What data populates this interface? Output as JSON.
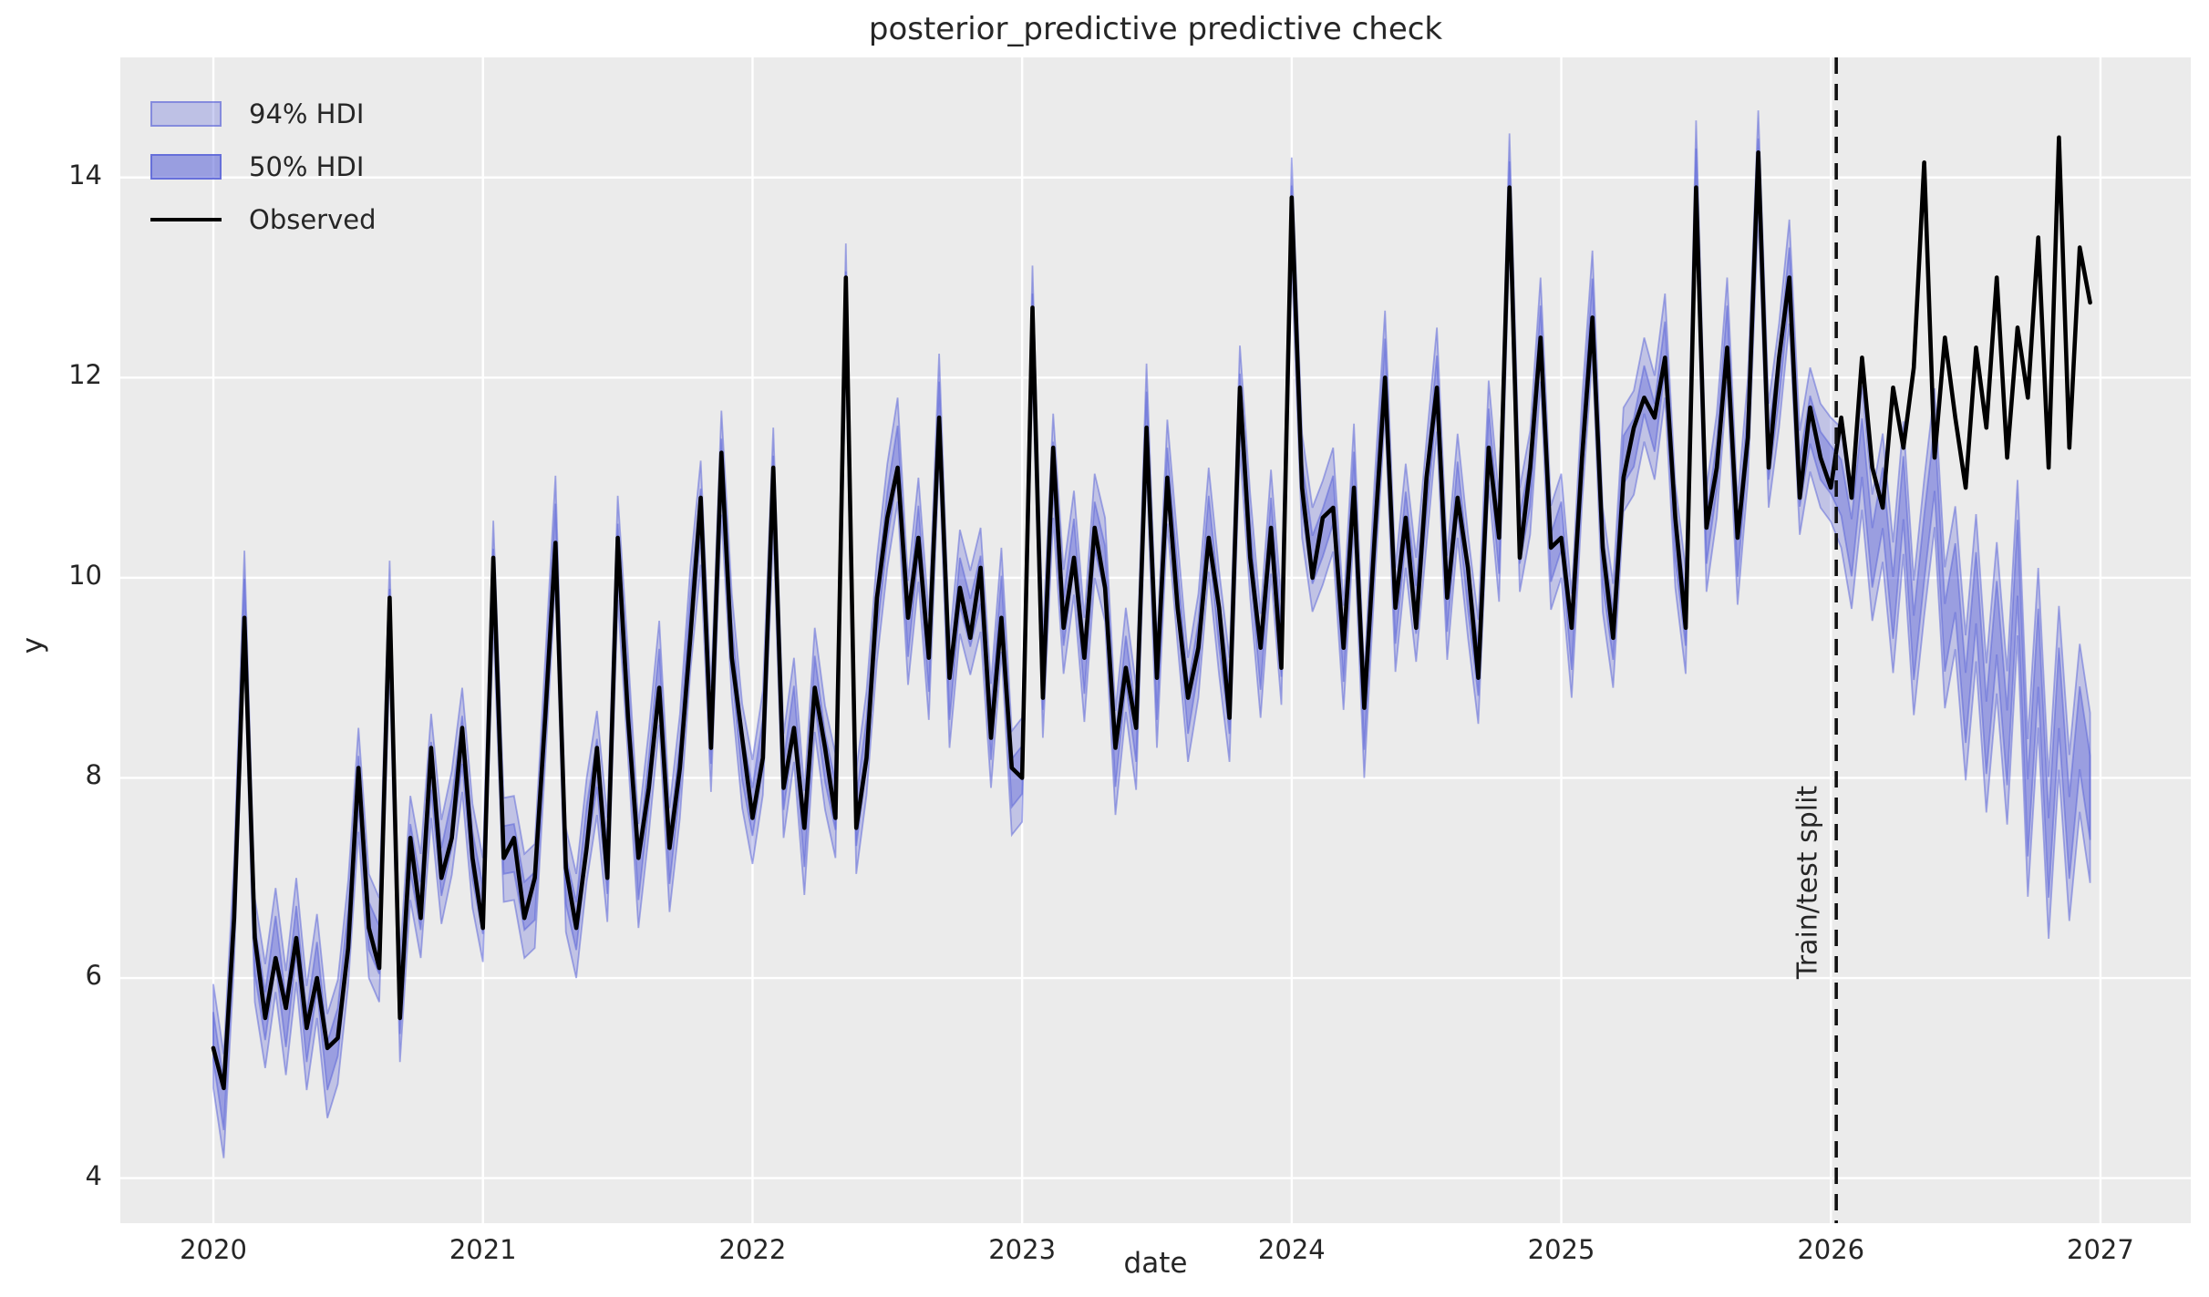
{
  "figure": {
    "title": "posterior_predictive predictive check",
    "xlabel": "date",
    "ylabel": "y",
    "split_annotation": "Train/test split"
  },
  "legend": {
    "items": [
      {
        "label": "94% HDI",
        "swatch": "band-light"
      },
      {
        "label": "50% HDI",
        "swatch": "band-dark"
      },
      {
        "label": "Observed",
        "swatch": "line"
      }
    ]
  },
  "chart_data": {
    "type": "line",
    "title": "posterior_predictive predictive check",
    "xlabel": "date",
    "ylabel": "y",
    "grid": true,
    "legend_position": "upper left",
    "xticks": [
      2020,
      2021,
      2022,
      2023,
      2024,
      2025,
      2026,
      2027
    ],
    "yticks": [
      4,
      6,
      8,
      10,
      12,
      14
    ],
    "xlim": [
      2019.655,
      2027.335
    ],
    "ylim": [
      3.55,
      15.2
    ],
    "x_start": 2020.0,
    "x_step_years": 0.0384615,
    "n_points": 182,
    "split_x": 2026.02,
    "split_index": 157,
    "observed": [
      5.3,
      4.9,
      6.6,
      9.6,
      6.4,
      5.6,
      6.2,
      5.7,
      6.4,
      5.5,
      6.0,
      5.3,
      5.4,
      6.3,
      8.1,
      6.5,
      6.1,
      9.8,
      5.6,
      7.4,
      6.6,
      8.3,
      7.0,
      7.4,
      8.5,
      7.2,
      6.5,
      10.2,
      7.2,
      7.4,
      6.6,
      7.0,
      8.6,
      10.35,
      7.1,
      6.5,
      7.3,
      8.3,
      7.0,
      10.4,
      8.6,
      7.2,
      7.9,
      8.9,
      7.3,
      8.1,
      9.4,
      10.8,
      8.3,
      11.25,
      9.2,
      8.4,
      7.6,
      8.2,
      11.1,
      7.9,
      8.5,
      7.5,
      8.9,
      8.3,
      7.6,
      13.0,
      7.5,
      8.2,
      9.8,
      10.6,
      11.1,
      9.6,
      10.4,
      9.2,
      11.6,
      9.0,
      9.9,
      9.4,
      10.1,
      8.4,
      9.6,
      8.1,
      8.0,
      12.7,
      8.8,
      11.3,
      9.5,
      10.2,
      9.2,
      10.5,
      9.9,
      8.3,
      9.1,
      8.5,
      11.5,
      9.0,
      11.0,
      9.7,
      8.8,
      9.3,
      10.4,
      9.7,
      8.6,
      11.9,
      10.2,
      9.3,
      10.5,
      9.1,
      13.8,
      10.9,
      10.0,
      10.6,
      10.7,
      9.3,
      10.9,
      8.7,
      10.4,
      12.0,
      9.7,
      10.6,
      9.5,
      11.0,
      11.9,
      9.8,
      10.8,
      10.1,
      9.0,
      11.3,
      10.4,
      13.9,
      10.2,
      11.1,
      12.4,
      10.3,
      10.4,
      9.5,
      11.2,
      12.6,
      10.3,
      9.4,
      11.0,
      11.5,
      11.8,
      11.6,
      12.2,
      10.6,
      9.5,
      13.9,
      10.5,
      11.1,
      12.3,
      10.4,
      11.4,
      14.25,
      11.1,
      12.2,
      13.0,
      10.8,
      11.7,
      11.2,
      10.9,
      11.6,
      10.8,
      12.2,
      11.1,
      10.7,
      11.9,
      11.3,
      12.1,
      14.15,
      11.2,
      12.4,
      11.6,
      10.9,
      12.3,
      11.5,
      13.0,
      11.2,
      12.5,
      11.8,
      13.4,
      11.1,
      14.4,
      11.3,
      13.3,
      12.75
    ],
    "posterior_mean_train_offset_cycle": [
      0.12,
      -0.18,
      0.06,
      0.15,
      -0.12,
      0.02,
      0.18,
      -0.15,
      0.08,
      -0.1
    ],
    "posterior_mean_test": [
      10.9,
      10.3,
      11.3,
      10.2,
      10.8,
      9.7,
      10.9,
      9.3,
      10.3,
      11.2,
      9.4,
      10.0,
      8.7,
      9.9,
      8.4,
      9.6,
      8.3,
      10.2,
      7.6,
      9.3,
      7.2,
      8.9,
      7.4,
      8.5,
      7.8
    ],
    "hdi94_halfwidth_train": 0.52,
    "hdi94_halfwidth_test": [
      0.6,
      0.85
    ],
    "hdi50_halfwidth_train": 0.24,
    "hdi50_halfwidth_test": [
      0.28,
      0.42
    ],
    "colors": {
      "band_base": "#555fd7",
      "band94_alpha": 0.28,
      "band50_alpha": 0.36,
      "band_edge_alpha": 0.5,
      "observed_line": "#000000",
      "split_line": "#111111",
      "axes_background": "#ebebeb",
      "gridline": "#ffffff",
      "text": "#262626"
    }
  }
}
